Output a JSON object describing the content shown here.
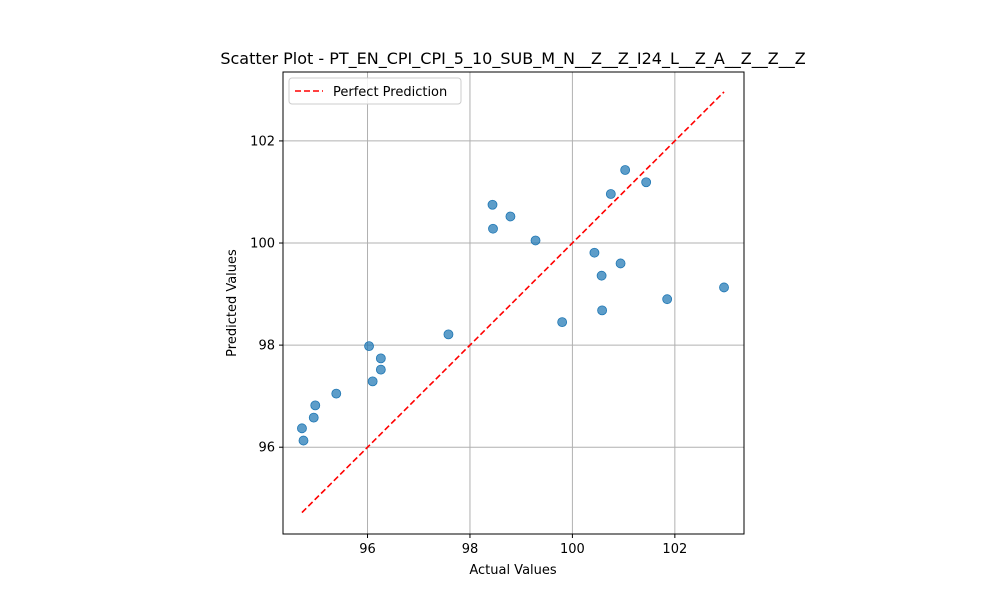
{
  "chart_data": {
    "type": "scatter",
    "title": "Scatter Plot - PT_EN_CPI_CPI_5_10_SUB_M_N__Z__Z_I24_L__Z_A__Z__Z__Z",
    "xlabel": "Actual Values",
    "ylabel": "Predicted Values",
    "xlim": [
      94.35,
      103.35
    ],
    "ylim": [
      94.3,
      103.35
    ],
    "xticks": [
      96,
      98,
      100,
      102
    ],
    "yticks": [
      96,
      98,
      100,
      102
    ],
    "xtick_labels": [
      "96",
      "98",
      "100",
      "102"
    ],
    "ytick_labels": [
      "96",
      "98",
      "100",
      "102"
    ],
    "grid": true,
    "legend_position": "top-left",
    "series": [
      {
        "name": "",
        "kind": "points",
        "color": "#1f77b4",
        "points": [
          {
            "x": 94.72,
            "y": 96.37
          },
          {
            "x": 94.75,
            "y": 96.13
          },
          {
            "x": 94.95,
            "y": 96.58
          },
          {
            "x": 94.98,
            "y": 96.82
          },
          {
            "x": 95.39,
            "y": 97.05
          },
          {
            "x": 96.03,
            "y": 97.98
          },
          {
            "x": 96.1,
            "y": 97.29
          },
          {
            "x": 96.26,
            "y": 97.74
          },
          {
            "x": 96.26,
            "y": 97.52
          },
          {
            "x": 97.58,
            "y": 98.21
          },
          {
            "x": 98.44,
            "y": 100.75
          },
          {
            "x": 98.45,
            "y": 100.28
          },
          {
            "x": 98.79,
            "y": 100.52
          },
          {
            "x": 99.28,
            "y": 100.05
          },
          {
            "x": 99.8,
            "y": 98.45
          },
          {
            "x": 100.43,
            "y": 99.81
          },
          {
            "x": 100.57,
            "y": 99.36
          },
          {
            "x": 100.58,
            "y": 98.68
          },
          {
            "x": 100.75,
            "y": 100.96
          },
          {
            "x": 100.94,
            "y": 99.6
          },
          {
            "x": 101.03,
            "y": 101.43
          },
          {
            "x": 101.44,
            "y": 101.19
          },
          {
            "x": 101.85,
            "y": 98.9
          },
          {
            "x": 102.96,
            "y": 99.13
          }
        ]
      },
      {
        "name": "Perfect Prediction",
        "kind": "line",
        "color": "#ff0000",
        "dash": "dashed",
        "points": [
          {
            "x": 94.72,
            "y": 94.72
          },
          {
            "x": 102.96,
            "y": 102.96
          }
        ]
      }
    ]
  }
}
